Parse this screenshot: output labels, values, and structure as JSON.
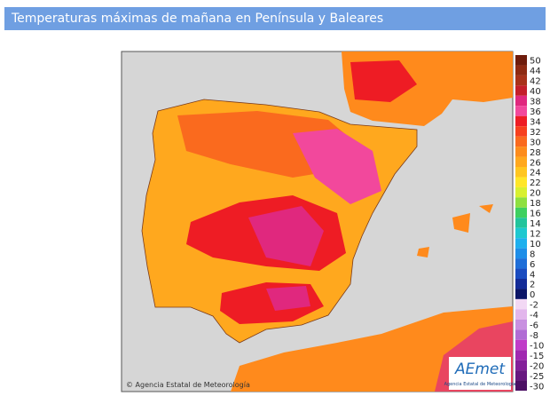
{
  "header": {
    "title": "Temperaturas máximas de mañana en Península y Baleares"
  },
  "map": {
    "credit": "© Agencia Estatal de Meteorología",
    "logo": {
      "name": "AEmet",
      "subtitle": "Agencia Estatal de Meteorología"
    }
  },
  "legend": {
    "entries": [
      {
        "value": 50,
        "color": "#6e1c0c"
      },
      {
        "value": 44,
        "color": "#8e2a12"
      },
      {
        "value": 42,
        "color": "#a8321a"
      },
      {
        "value": 40,
        "color": "#c41e2a"
      },
      {
        "value": 38,
        "color": "#e0287e"
      },
      {
        "value": 36,
        "color": "#f2489c"
      },
      {
        "value": 34,
        "color": "#ee1c24"
      },
      {
        "value": 32,
        "color": "#f7401e"
      },
      {
        "value": 30,
        "color": "#fa6a1e"
      },
      {
        "value": 28,
        "color": "#fd8c1c"
      },
      {
        "value": 26,
        "color": "#ffa81e"
      },
      {
        "value": 24,
        "color": "#ffc620"
      },
      {
        "value": 22,
        "color": "#ffe628"
      },
      {
        "value": 20,
        "color": "#d8f030"
      },
      {
        "value": 18,
        "color": "#8ee040"
      },
      {
        "value": 16,
        "color": "#3ed060"
      },
      {
        "value": 14,
        "color": "#22c49c"
      },
      {
        "value": 12,
        "color": "#1ec8d0"
      },
      {
        "value": 10,
        "color": "#1eb0ee"
      },
      {
        "value": 8,
        "color": "#1e8ee8"
      },
      {
        "value": 6,
        "color": "#1e6ed8"
      },
      {
        "value": 4,
        "color": "#1a4cc0"
      },
      {
        "value": 2,
        "color": "#142c98"
      },
      {
        "value": 0,
        "color": "#0c1668"
      },
      {
        "value": -2,
        "color": "#f2d8f4"
      },
      {
        "value": -4,
        "color": "#e2b6ec"
      },
      {
        "value": -6,
        "color": "#c890e0"
      },
      {
        "value": -8,
        "color": "#b06cd4"
      },
      {
        "value": -10,
        "color": "#c03cc8"
      },
      {
        "value": -15,
        "color": "#a028b0"
      },
      {
        "value": -20,
        "color": "#84209a"
      },
      {
        "value": -25,
        "color": "#681880"
      },
      {
        "value": -30,
        "color": "#4c1064"
      }
    ]
  }
}
